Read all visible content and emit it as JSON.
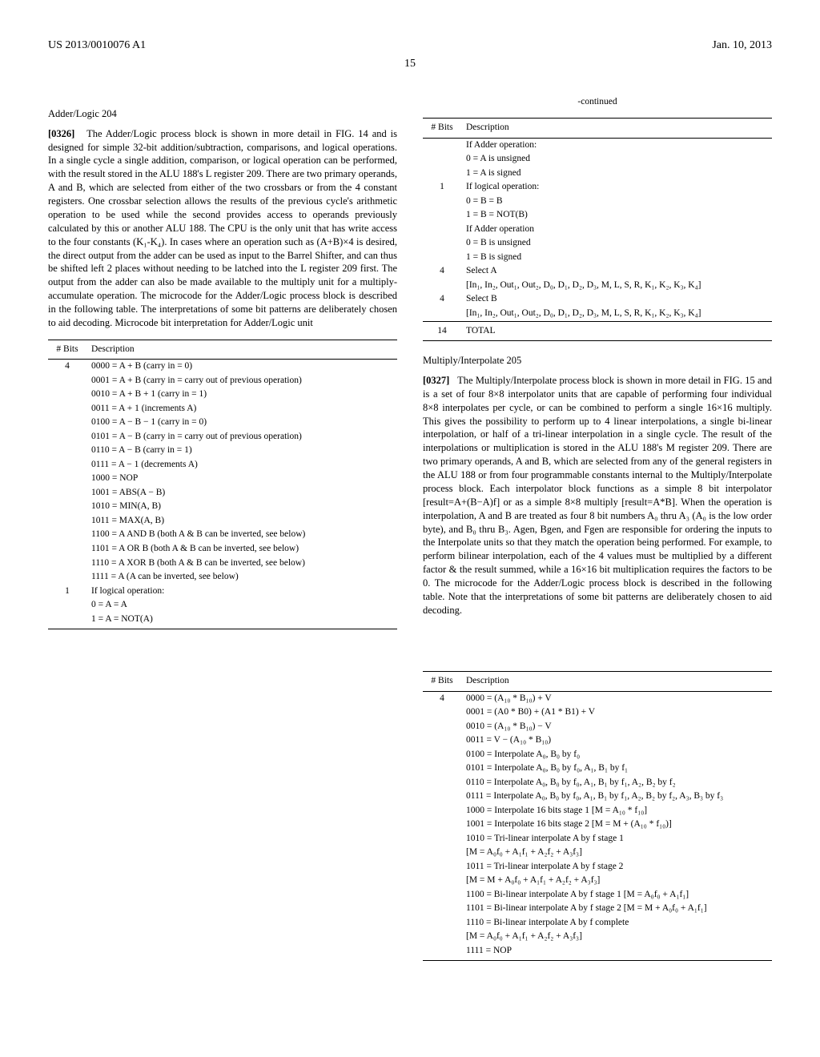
{
  "header": {
    "left": "US 2013/0010076 A1",
    "right": "Jan. 10, 2013",
    "page": "15"
  },
  "left_col": {
    "section1_title": "Adder/Logic 204",
    "p1_num": "[0326]",
    "p1_text": "The Adder/Logic process block is shown in more detail in FIG. 14 and is designed for simple 32-bit addition/subtraction, comparisons, and logical operations. In a single cycle a single addition, comparison, or logical operation can be performed, with the result stored in the ALU 188's L register 209. There are two primary operands, A and B, which are selected from either of the two crossbars or from the 4 constant registers. One crossbar selection allows the results of the previous cycle's arithmetic operation to be used while the second provides access to operands previously calculated by this or another ALU 188. The CPU is the only unit that has write access to the four constants (K₁-K₄). In cases where an operation such as (A+B)×4 is desired, the direct output from the adder can be used as input to the Barrel Shifter, and can thus be shifted left 2 places without needing to be latched into the L register 209 first. The output from the adder can also be made available to the multiply unit for a multiply-accumulate operation. The microcode for the Adder/Logic process block is described in the following table. The interpretations of some bit patterns are deliberately chosen to aid decoding. Microcode bit interpretation for Adder/Logic unit",
    "table1": {
      "headers": [
        "# Bits",
        "Description"
      ],
      "rows": [
        {
          "bits": "4",
          "desc": "0000 = A + B (carry in = 0)"
        },
        {
          "bits": "",
          "desc": "0001 = A + B (carry in = carry out of previous operation)"
        },
        {
          "bits": "",
          "desc": "0010 = A + B + 1 (carry in = 1)"
        },
        {
          "bits": "",
          "desc": "0011 = A + 1 (increments A)"
        },
        {
          "bits": "",
          "desc": "0100 = A − B − 1 (carry in = 0)"
        },
        {
          "bits": "",
          "desc": "0101 = A − B (carry in = carry out of previous operation)"
        },
        {
          "bits": "",
          "desc": "0110 = A − B (carry in = 1)"
        },
        {
          "bits": "",
          "desc": "0111 = A − 1 (decrements A)"
        },
        {
          "bits": "",
          "desc": "1000 = NOP"
        },
        {
          "bits": "",
          "desc": "1001 = ABS(A − B)"
        },
        {
          "bits": "",
          "desc": "1010 = MIN(A, B)"
        },
        {
          "bits": "",
          "desc": "1011 = MAX(A, B)"
        },
        {
          "bits": "",
          "desc": "1100 = A AND B (both A & B can be inverted, see below)"
        },
        {
          "bits": "",
          "desc": "1101 = A OR B (both A & B can be inverted, see below)"
        },
        {
          "bits": "",
          "desc": "1110 = A XOR B (both A & B can be inverted, see below)"
        },
        {
          "bits": "",
          "desc": "1111 = A (A can be inverted, see below)"
        },
        {
          "bits": "1",
          "desc": "If logical operation:"
        },
        {
          "bits": "",
          "desc": "0 = A = A"
        },
        {
          "bits": "",
          "desc": "1 = A = NOT(A)"
        }
      ]
    }
  },
  "right_col": {
    "cont_label": "-continued",
    "table2": {
      "headers": [
        "# Bits",
        "Description"
      ],
      "rows": [
        {
          "bits": "",
          "desc": "If Adder operation:"
        },
        {
          "bits": "",
          "desc": "0 = A is unsigned"
        },
        {
          "bits": "",
          "desc": "1 = A is signed"
        },
        {
          "bits": "1",
          "desc": "If logical operation:"
        },
        {
          "bits": "",
          "desc": "0 = B = B"
        },
        {
          "bits": "",
          "desc": "1 = B = NOT(B)"
        },
        {
          "bits": "",
          "desc": "If Adder operation"
        },
        {
          "bits": "",
          "desc": "0 = B is unsigned"
        },
        {
          "bits": "",
          "desc": "1 = B is signed"
        },
        {
          "bits": "4",
          "desc": "Select A"
        },
        {
          "bits": "",
          "desc": "[In₁, In₂, Out₁, Out₂, D₀, D₁, D₂, D₃, M, L, S, R, K₁, K₂, K₃, K₄]"
        },
        {
          "bits": "4",
          "desc": "Select B"
        },
        {
          "bits": "",
          "desc": "[In₁, In₂, Out₁, Out₂, D₀, D₁, D₂, D₃, M, L, S, R, K₁, K₂, K₃, K₄]"
        }
      ],
      "total_bits": "14",
      "total_label": "TOTAL"
    },
    "section2_title": "Multiply/Interpolate 205",
    "p2_num": "[0327]",
    "p2_text": "The Multiply/Interpolate process block is shown in more detail in FIG. 15 and is a set of four 8×8 interpolator units that are capable of performing four individual 8×8 interpolates per cycle, or can be combined to perform a single 16×16 multiply. This gives the possibility to perform up to 4 linear interpolations, a single bi-linear interpolation, or half of a tri-linear interpolation in a single cycle. The result of the interpolations or multiplication is stored in the ALU 188's M register 209. There are two primary operands, A and B, which are selected from any of the general registers in the ALU 188 or from four programmable constants internal to the Multiply/Interpolate process block. Each interpolator block functions as a simple 8 bit interpolator [result=A+(B−A)f] or as a simple 8×8 multiply [result=A*B]. When the operation is interpolation, A and B are treated as four 8 bit numbers A₀ thru A₃ (A₀ is the low order byte), and B₀ thru B₃. Agen, Bgen, and Fgen are responsible for ordering the inputs to the Interpolate units so that they match the operation being performed. For example, to perform bilinear interpolation, each of the 4 values must be multiplied by a different factor & the result summed, while a 16×16 bit multiplication requires the factors to be 0. The microcode for the Adder/Logic process block is described in the following table. Note that the interpretations of some bit patterns are deliberately chosen to aid decoding."
  },
  "wide_table": {
    "headers": [
      "# Bits",
      "Description"
    ],
    "rows": [
      {
        "bits": "4",
        "desc": "0000 = (A₁₀ * B₁₀) + V"
      },
      {
        "bits": "",
        "desc": "0001 = (A0 * B0) + (A1 * B1) + V"
      },
      {
        "bits": "",
        "desc": "0010 = (A₁₀ * B₁₀) − V"
      },
      {
        "bits": "",
        "desc": "0011 = V − (A₁₀ * B₁₀)"
      },
      {
        "bits": "",
        "desc": "0100 = Interpolate A₀, B₀ by f₀"
      },
      {
        "bits": "",
        "desc": "0101 = Interpolate A₀, B₀ by f₀, A₁, B₁ by f₁"
      },
      {
        "bits": "",
        "desc": "0110 = Interpolate A₀, B₀ by f₀, A₁, B₁ by f₁, A₂, B₂ by f₂"
      },
      {
        "bits": "",
        "desc": "0111 = Interpolate A₀, B₀ by f₀, A₁, B₁ by f₁, A₂, B₂ by f₂, A₃, B₃ by f₃"
      },
      {
        "bits": "",
        "desc": "1000 = Interpolate 16 bits stage 1 [M = A₁₀ * f₁₀]"
      },
      {
        "bits": "",
        "desc": "1001 = Interpolate 16 bits stage 2 [M = M + (A₁₀ * f₁₀)]"
      },
      {
        "bits": "",
        "desc": "1010 = Tri-linear interpolate A by f stage 1"
      },
      {
        "bits": "",
        "desc": "[M = A₀f₀ + A₁f₁ + A₂f₂ + A₃f₃]"
      },
      {
        "bits": "",
        "desc": "1011 = Tri-linear interpolate A by f stage 2"
      },
      {
        "bits": "",
        "desc": "[M = M + A₀f₀ + A₁f₁ + A₂f₂ + A₃f₃]"
      },
      {
        "bits": "",
        "desc": "1100 = Bi-linear interpolate A by f stage 1 [M = A₀f₀ + A₁f₁]"
      },
      {
        "bits": "",
        "desc": "1101 = Bi-linear interpolate A by f stage 2 [M = M + A₀f₀ + A₁f₁]"
      },
      {
        "bits": "",
        "desc": "1110 = Bi-linear interpolate A by f complete"
      },
      {
        "bits": "",
        "desc": "[M = A₀f₀ + A₁f₁ + A₂f₂ + A₃f₃]"
      },
      {
        "bits": "",
        "desc": "1111 = NOP"
      }
    ]
  }
}
